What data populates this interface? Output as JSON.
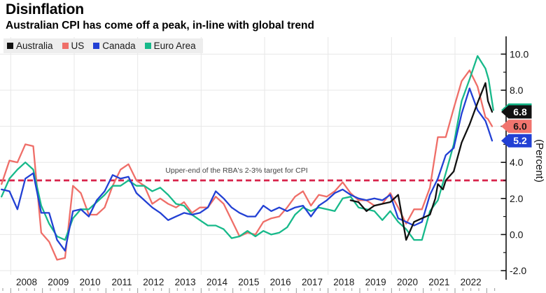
{
  "header": {
    "title": "Disinflation",
    "subtitle": "Australian CPI has come off a peak, in-line with global trend"
  },
  "legend": [
    {
      "id": "australia",
      "label": "Australia",
      "color": "#111111"
    },
    {
      "id": "us",
      "label": "US",
      "color": "#ef6e68"
    },
    {
      "id": "canada",
      "label": "Canada",
      "color": "#2240d4"
    },
    {
      "id": "euro-area",
      "label": "Euro Area",
      "color": "#17b98a"
    }
  ],
  "annotation": {
    "text": "Upper-end of the RBA's 2-3% target for CPI",
    "line_value": 3.0,
    "line_color": "#d8234b"
  },
  "y_axis": {
    "label": "(Percent)",
    "ticks": [
      {
        "v": 10,
        "label": "10.0"
      },
      {
        "v": 8,
        "label": "8.0"
      },
      {
        "v": 6,
        "label": "6.0"
      },
      {
        "v": 4,
        "label": "4.0"
      },
      {
        "v": 2,
        "label": "2.0"
      },
      {
        "v": 0,
        "label": "0.0"
      },
      {
        "v": -2,
        "label": "-2.0"
      }
    ],
    "minor_ticks": [
      9,
      7,
      5,
      3,
      1,
      -1
    ]
  },
  "x_axis": {
    "years": [
      "2008",
      "2009",
      "2010",
      "2011",
      "2012",
      "2013",
      "2014",
      "2015",
      "2016",
      "2017",
      "2018",
      "2019",
      "2020",
      "2021",
      "2022"
    ],
    "gridline_years": [
      2008,
      2010,
      2012,
      2014,
      2016,
      2018,
      2020,
      2022
    ]
  },
  "end_labels": [
    {
      "id": "euro-area",
      "text": "",
      "bg": "#17b98a",
      "fg": "#ffffff",
      "v": 6.9
    },
    {
      "id": "australia",
      "text": "6.8",
      "bg": "#111111",
      "fg": "#ffffff",
      "v": 6.8
    },
    {
      "id": "us",
      "text": "6.0",
      "bg": "#f0746e",
      "fg": "#141414",
      "v": 6.0
    },
    {
      "id": "canada",
      "text": "5.2",
      "bg": "#2240d4",
      "fg": "#ffffff",
      "v": 5.2
    }
  ],
  "chart_data": {
    "type": "line",
    "title": "Disinflation",
    "subtitle": "Australian CPI has come off a peak, in-line with global trend",
    "ylabel": "(Percent)",
    "x_unit": "year (decimal; quarterly CPI YoY points, monthly at tail)",
    "xlim": [
      2007.66,
      2023.6
    ],
    "ylim": [
      -2.8,
      10.8
    ],
    "grid": true,
    "legend_position": "top-left",
    "target_line": {
      "value": 3.0,
      "label": "Upper-end of the RBA's 2-3% target for CPI"
    },
    "series": [
      {
        "id": "us",
        "name": "US",
        "color": "#ef6e68",
        "end_value": 6.0,
        "points": [
          [
            2007.71,
            2.8
          ],
          [
            2007.96,
            4.1
          ],
          [
            2008.21,
            4.0
          ],
          [
            2008.46,
            5.0
          ],
          [
            2008.71,
            4.9
          ],
          [
            2008.96,
            0.1
          ],
          [
            2009.21,
            -0.4
          ],
          [
            2009.46,
            -1.4
          ],
          [
            2009.71,
            -1.3
          ],
          [
            2009.96,
            2.7
          ],
          [
            2010.21,
            2.3
          ],
          [
            2010.46,
            1.1
          ],
          [
            2010.71,
            1.1
          ],
          [
            2010.96,
            1.5
          ],
          [
            2011.21,
            2.7
          ],
          [
            2011.46,
            3.6
          ],
          [
            2011.71,
            3.9
          ],
          [
            2011.96,
            3.0
          ],
          [
            2012.21,
            2.7
          ],
          [
            2012.46,
            1.7
          ],
          [
            2012.71,
            2.0
          ],
          [
            2012.96,
            1.7
          ],
          [
            2013.21,
            1.5
          ],
          [
            2013.46,
            1.8
          ],
          [
            2013.71,
            1.2
          ],
          [
            2013.96,
            1.5
          ],
          [
            2014.21,
            1.5
          ],
          [
            2014.46,
            2.1
          ],
          [
            2014.71,
            1.7
          ],
          [
            2014.96,
            0.8
          ],
          [
            2015.21,
            -0.1
          ],
          [
            2015.46,
            0.1
          ],
          [
            2015.71,
            0.0
          ],
          [
            2015.96,
            0.7
          ],
          [
            2016.21,
            0.9
          ],
          [
            2016.46,
            1.0
          ],
          [
            2016.71,
            1.5
          ],
          [
            2016.96,
            2.1
          ],
          [
            2017.21,
            2.4
          ],
          [
            2017.46,
            1.6
          ],
          [
            2017.71,
            2.2
          ],
          [
            2017.96,
            2.1
          ],
          [
            2018.21,
            2.4
          ],
          [
            2018.46,
            2.9
          ],
          [
            2018.71,
            2.3
          ],
          [
            2018.96,
            1.9
          ],
          [
            2019.21,
            1.9
          ],
          [
            2019.46,
            1.6
          ],
          [
            2019.71,
            1.7
          ],
          [
            2019.96,
            2.3
          ],
          [
            2020.21,
            1.5
          ],
          [
            2020.46,
            0.6
          ],
          [
            2020.71,
            1.4
          ],
          [
            2020.96,
            1.4
          ],
          [
            2021.21,
            2.6
          ],
          [
            2021.46,
            5.4
          ],
          [
            2021.71,
            5.4
          ],
          [
            2021.96,
            7.0
          ],
          [
            2022.21,
            8.5
          ],
          [
            2022.46,
            9.1
          ],
          [
            2022.71,
            8.2
          ],
          [
            2022.96,
            6.5
          ],
          [
            2023.04,
            6.4
          ],
          [
            2023.17,
            6.0
          ]
        ]
      },
      {
        "id": "euro-area",
        "name": "Euro Area",
        "color": "#17b98a",
        "end_value": 6.9,
        "points": [
          [
            2007.71,
            2.1
          ],
          [
            2007.96,
            3.1
          ],
          [
            2008.21,
            3.6
          ],
          [
            2008.46,
            4.0
          ],
          [
            2008.71,
            3.6
          ],
          [
            2008.96,
            1.6
          ],
          [
            2009.21,
            0.6
          ],
          [
            2009.46,
            -0.1
          ],
          [
            2009.71,
            -0.3
          ],
          [
            2009.96,
            0.9
          ],
          [
            2010.21,
            1.4
          ],
          [
            2010.46,
            1.4
          ],
          [
            2010.71,
            1.8
          ],
          [
            2010.96,
            2.2
          ],
          [
            2011.21,
            2.7
          ],
          [
            2011.46,
            2.7
          ],
          [
            2011.71,
            3.0
          ],
          [
            2011.96,
            2.7
          ],
          [
            2012.21,
            2.7
          ],
          [
            2012.46,
            2.4
          ],
          [
            2012.71,
            2.6
          ],
          [
            2012.96,
            2.2
          ],
          [
            2013.21,
            1.7
          ],
          [
            2013.46,
            1.6
          ],
          [
            2013.71,
            1.1
          ],
          [
            2013.96,
            0.8
          ],
          [
            2014.21,
            0.5
          ],
          [
            2014.46,
            0.5
          ],
          [
            2014.71,
            0.3
          ],
          [
            2014.96,
            -0.2
          ],
          [
            2015.21,
            -0.1
          ],
          [
            2015.46,
            0.2
          ],
          [
            2015.71,
            -0.1
          ],
          [
            2015.96,
            0.2
          ],
          [
            2016.21,
            0.0
          ],
          [
            2016.46,
            0.1
          ],
          [
            2016.71,
            0.4
          ],
          [
            2016.96,
            1.1
          ],
          [
            2017.21,
            1.5
          ],
          [
            2017.46,
            1.3
          ],
          [
            2017.71,
            1.5
          ],
          [
            2017.96,
            1.4
          ],
          [
            2018.21,
            1.3
          ],
          [
            2018.46,
            2.0
          ],
          [
            2018.71,
            2.1
          ],
          [
            2018.96,
            1.5
          ],
          [
            2019.21,
            1.4
          ],
          [
            2019.46,
            1.3
          ],
          [
            2019.71,
            0.8
          ],
          [
            2019.96,
            1.3
          ],
          [
            2020.21,
            0.7
          ],
          [
            2020.46,
            0.3
          ],
          [
            2020.71,
            -0.3
          ],
          [
            2020.96,
            -0.3
          ],
          [
            2021.21,
            1.3
          ],
          [
            2021.46,
            1.9
          ],
          [
            2021.71,
            3.4
          ],
          [
            2021.96,
            5.0
          ],
          [
            2022.21,
            7.4
          ],
          [
            2022.46,
            8.6
          ],
          [
            2022.71,
            9.9
          ],
          [
            2022.96,
            9.2
          ],
          [
            2023.06,
            8.6
          ],
          [
            2023.21,
            6.9
          ]
        ]
      },
      {
        "id": "canada",
        "name": "Canada",
        "color": "#2240d4",
        "end_value": 5.2,
        "points": [
          [
            2007.71,
            2.5
          ],
          [
            2007.96,
            2.4
          ],
          [
            2008.21,
            1.4
          ],
          [
            2008.46,
            3.1
          ],
          [
            2008.71,
            3.4
          ],
          [
            2008.96,
            1.2
          ],
          [
            2009.21,
            1.2
          ],
          [
            2009.46,
            -0.3
          ],
          [
            2009.71,
            -0.9
          ],
          [
            2009.96,
            1.3
          ],
          [
            2010.21,
            1.4
          ],
          [
            2010.46,
            1.0
          ],
          [
            2010.71,
            1.9
          ],
          [
            2010.96,
            2.4
          ],
          [
            2011.21,
            3.3
          ],
          [
            2011.46,
            3.1
          ],
          [
            2011.71,
            3.2
          ],
          [
            2011.96,
            2.3
          ],
          [
            2012.21,
            1.9
          ],
          [
            2012.46,
            1.5
          ],
          [
            2012.71,
            1.2
          ],
          [
            2012.96,
            0.8
          ],
          [
            2013.21,
            1.0
          ],
          [
            2013.46,
            1.2
          ],
          [
            2013.71,
            1.1
          ],
          [
            2013.96,
            1.2
          ],
          [
            2014.21,
            1.5
          ],
          [
            2014.46,
            2.4
          ],
          [
            2014.71,
            2.0
          ],
          [
            2014.96,
            1.5
          ],
          [
            2015.21,
            1.2
          ],
          [
            2015.46,
            1.0
          ],
          [
            2015.71,
            1.0
          ],
          [
            2015.96,
            1.6
          ],
          [
            2016.21,
            1.3
          ],
          [
            2016.46,
            1.5
          ],
          [
            2016.71,
            1.3
          ],
          [
            2016.96,
            1.5
          ],
          [
            2017.21,
            1.6
          ],
          [
            2017.46,
            1.0
          ],
          [
            2017.71,
            1.6
          ],
          [
            2017.96,
            1.9
          ],
          [
            2018.21,
            2.3
          ],
          [
            2018.46,
            2.5
          ],
          [
            2018.71,
            2.2
          ],
          [
            2018.96,
            2.0
          ],
          [
            2019.21,
            1.9
          ],
          [
            2019.46,
            2.0
          ],
          [
            2019.71,
            1.9
          ],
          [
            2019.96,
            2.2
          ],
          [
            2020.21,
            0.9
          ],
          [
            2020.46,
            0.7
          ],
          [
            2020.71,
            0.5
          ],
          [
            2020.96,
            0.7
          ],
          [
            2021.21,
            2.2
          ],
          [
            2021.46,
            3.1
          ],
          [
            2021.71,
            4.4
          ],
          [
            2021.96,
            4.8
          ],
          [
            2022.21,
            6.7
          ],
          [
            2022.46,
            8.1
          ],
          [
            2022.71,
            6.9
          ],
          [
            2022.96,
            6.3
          ],
          [
            2023.04,
            5.9
          ],
          [
            2023.17,
            5.2
          ]
        ]
      },
      {
        "id": "australia",
        "name": "Australia",
        "color": "#111111",
        "end_value": 6.8,
        "points": [
          [
            2018.71,
            1.9
          ],
          [
            2018.96,
            1.8
          ],
          [
            2019.21,
            1.3
          ],
          [
            2019.46,
            1.6
          ],
          [
            2019.71,
            1.7
          ],
          [
            2019.96,
            1.8
          ],
          [
            2020.21,
            2.2
          ],
          [
            2020.46,
            -0.3
          ],
          [
            2020.71,
            0.7
          ],
          [
            2020.96,
            0.9
          ],
          [
            2021.21,
            1.1
          ],
          [
            2021.38,
            2.0
          ],
          [
            2021.46,
            2.8
          ],
          [
            2021.62,
            2.5
          ],
          [
            2021.71,
            3.0
          ],
          [
            2021.96,
            3.5
          ],
          [
            2022.21,
            5.1
          ],
          [
            2022.46,
            6.1
          ],
          [
            2022.71,
            7.3
          ],
          [
            2022.96,
            8.4
          ],
          [
            2023.04,
            7.4
          ],
          [
            2023.17,
            6.8
          ]
        ]
      }
    ]
  }
}
